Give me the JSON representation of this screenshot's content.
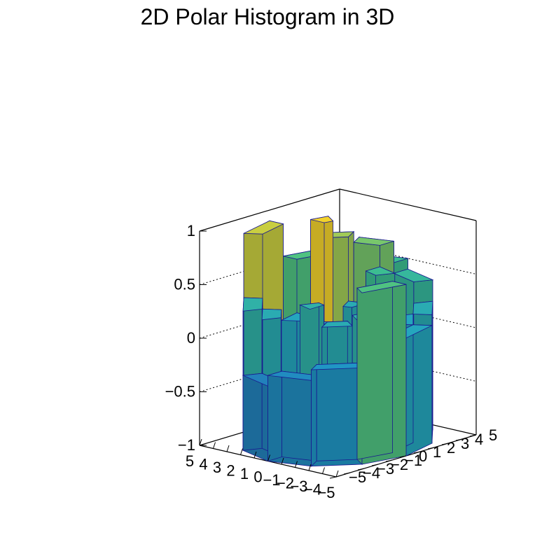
{
  "chart_data": {
    "type": "lego3d-polar-histogram",
    "title": "2D Polar Histogram in 3D",
    "zlim": [
      -1,
      1
    ],
    "z_ticks": [
      "1",
      "0.5",
      "0",
      "−0.5",
      "−1"
    ],
    "x_ticks": [
      "5",
      "4",
      "3",
      "2",
      "1",
      "0",
      "−1",
      "−2",
      "−3",
      "−4",
      "−5"
    ],
    "y_ticks": [
      "5",
      "4",
      "3",
      "2",
      "1",
      "0",
      "−1",
      "−2",
      "−3",
      "−4",
      "−5"
    ],
    "radial_bins": 5,
    "angular_bins": 12,
    "grid": true,
    "colormap": "viridis-like",
    "colors": {
      "low": "#2a3a9e",
      "mid": "#1fa0c8",
      "high": "#3fc08a",
      "top": "#f2d22c",
      "edge": "#1a1a90"
    },
    "bins": [
      {
        "r": 4,
        "a": 0,
        "z": 0.6
      },
      {
        "r": 4,
        "a": 1,
        "z": -0.1
      },
      {
        "r": 4,
        "a": 2,
        "z": -0.2
      },
      {
        "r": 4,
        "a": 3,
        "z": -0.3
      },
      {
        "r": 4,
        "a": 4,
        "z": 0.3
      },
      {
        "r": 4,
        "a": 5,
        "z": 0.9
      },
      {
        "r": 4,
        "a": 6,
        "z": 0.5
      },
      {
        "r": 4,
        "a": 7,
        "z": 0.4
      },
      {
        "r": 4,
        "a": 8,
        "z": 0.5
      },
      {
        "r": 4,
        "a": 9,
        "z": 0.4
      },
      {
        "r": 4,
        "a": 10,
        "z": 0.2
      },
      {
        "r": 4,
        "a": 11,
        "z": 0.1
      },
      {
        "r": 3,
        "a": 0,
        "z": 0.3
      },
      {
        "r": 3,
        "a": 2,
        "z": -0.4
      },
      {
        "r": 3,
        "a": 4,
        "z": 0.2
      },
      {
        "r": 3,
        "a": 6,
        "z": 0.6
      },
      {
        "r": 3,
        "a": 8,
        "z": 0.7
      },
      {
        "r": 3,
        "a": 10,
        "z": 0.1
      },
      {
        "r": 2,
        "a": 1,
        "z": 0.2
      },
      {
        "r": 2,
        "a": 5,
        "z": 0.1
      },
      {
        "r": 2,
        "a": 7,
        "z": 0.8
      },
      {
        "r": 2,
        "a": 9,
        "z": 0.5
      },
      {
        "r": 1,
        "a": 3,
        "z": 0.3
      },
      {
        "r": 1,
        "a": 6,
        "z": 1.0
      },
      {
        "r": 1,
        "a": 8,
        "z": 0.2
      },
      {
        "r": 0,
        "a": 4,
        "z": 0.1
      }
    ]
  }
}
